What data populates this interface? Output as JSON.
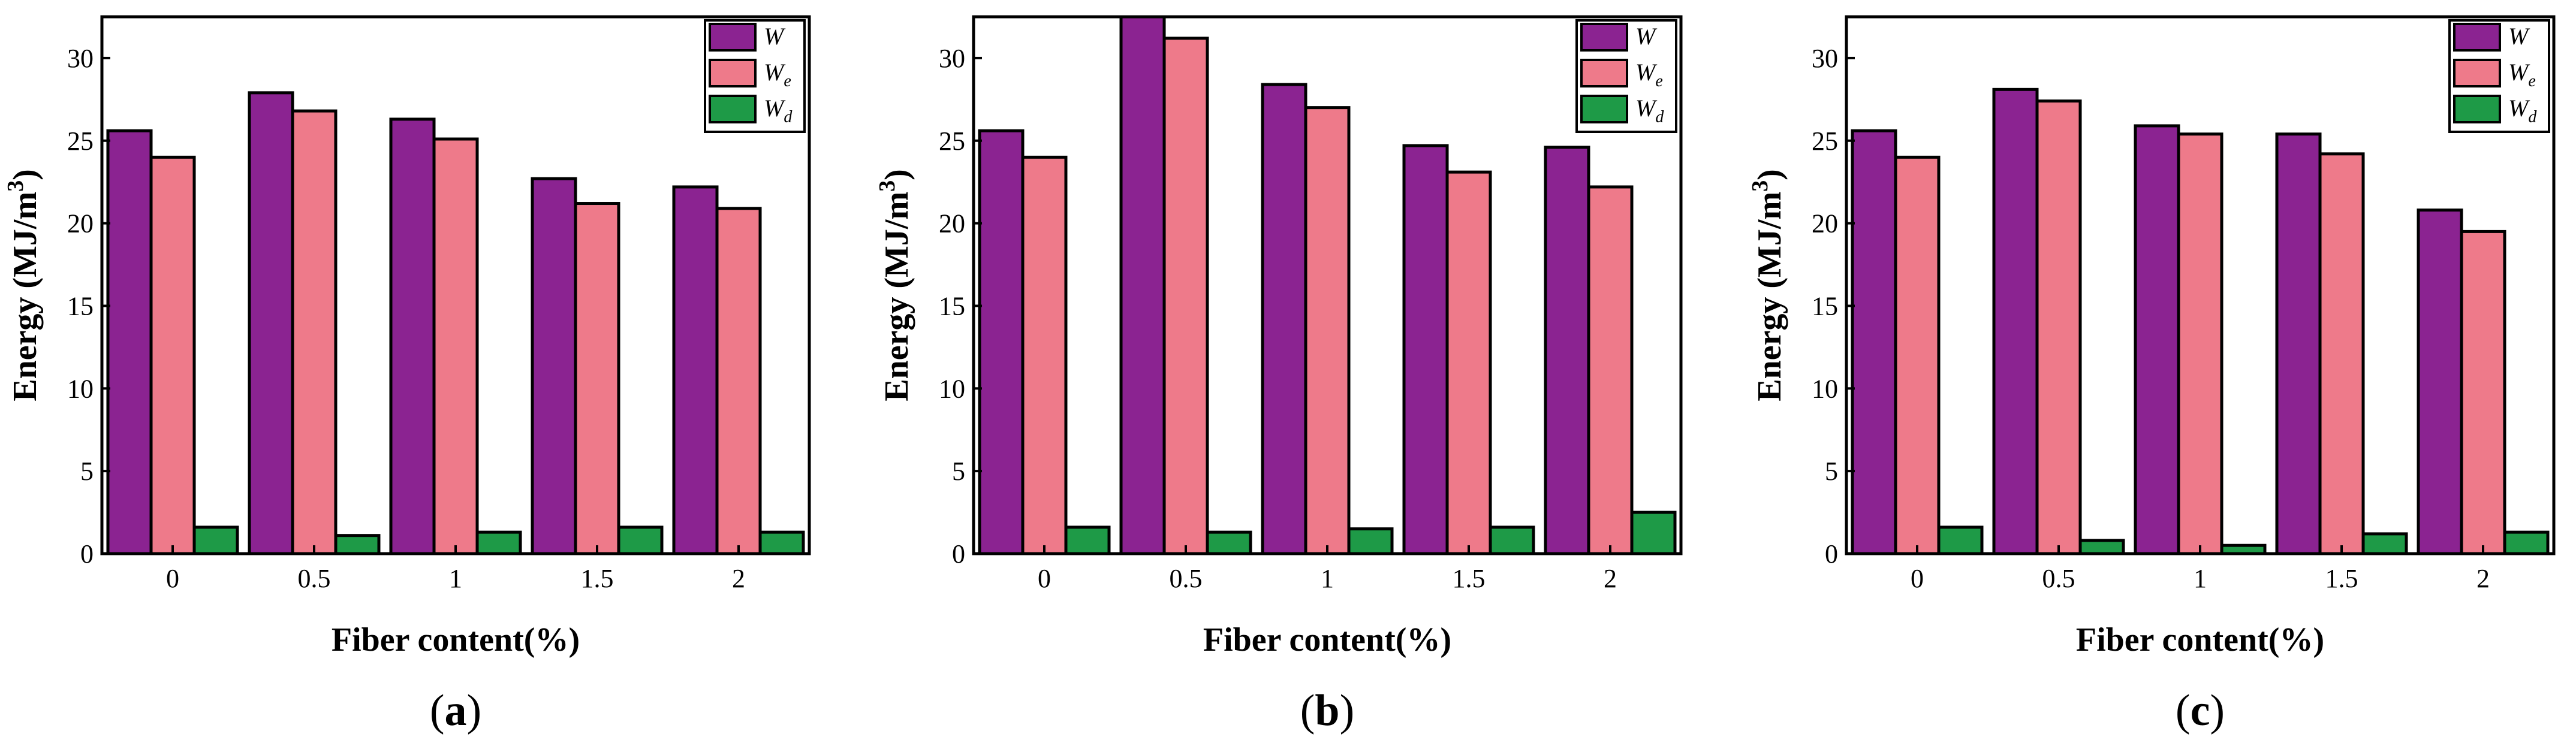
{
  "figure": {
    "panel_labels": [
      "a",
      "b",
      "c"
    ],
    "colors": {
      "W": "#8B2391",
      "We": "#EE7A8A",
      "Wd": "#1E9A47",
      "frame": "#000000"
    }
  },
  "chart_data": [
    {
      "type": "bar",
      "panel": "a",
      "xlabel": "Fiber content(%)",
      "ylabel_main": "Energy (MJ/m",
      "ylabel_sup": "3",
      "ylabel_close": ")",
      "categories": [
        "0",
        "0.5",
        "1",
        "1.5",
        "2"
      ],
      "ylim": [
        0,
        32.5
      ],
      "yticks": [
        "0",
        "5",
        "10",
        "15",
        "20",
        "25",
        "30"
      ],
      "legend_position": "top-right",
      "series": [
        {
          "name": "W",
          "sub": "",
          "color": "#8B2391",
          "values": [
            25.6,
            27.9,
            26.3,
            22.7,
            22.2
          ]
        },
        {
          "name": "W",
          "sub": "e",
          "color": "#EE7A8A",
          "values": [
            24.0,
            26.8,
            25.1,
            21.2,
            20.9
          ]
        },
        {
          "name": "W",
          "sub": "d",
          "color": "#1E9A47",
          "values": [
            1.6,
            1.1,
            1.3,
            1.6,
            1.3
          ]
        }
      ]
    },
    {
      "type": "bar",
      "panel": "b",
      "xlabel": "Fiber content(%)",
      "ylabel_main": "Energy (MJ/m",
      "ylabel_sup": "3",
      "ylabel_close": ")",
      "categories": [
        "0",
        "0.5",
        "1",
        "1.5",
        "2"
      ],
      "ylim": [
        0,
        32.5
      ],
      "yticks": [
        "0",
        "5",
        "10",
        "15",
        "20",
        "25",
        "30"
      ],
      "legend_position": "top-right",
      "series": [
        {
          "name": "W",
          "sub": "",
          "color": "#8B2391",
          "values": [
            25.6,
            32.9,
            28.4,
            24.7,
            24.6
          ]
        },
        {
          "name": "W",
          "sub": "e",
          "color": "#EE7A8A",
          "values": [
            24.0,
            31.2,
            27.0,
            23.1,
            22.2
          ]
        },
        {
          "name": "W",
          "sub": "d",
          "color": "#1E9A47",
          "values": [
            1.6,
            1.3,
            1.5,
            1.6,
            2.5
          ]
        }
      ]
    },
    {
      "type": "bar",
      "panel": "c",
      "xlabel": "Fiber content(%)",
      "ylabel_main": "Energy (MJ/m",
      "ylabel_sup": "3",
      "ylabel_close": ")",
      "categories": [
        "0",
        "0.5",
        "1",
        "1.5",
        "2"
      ],
      "ylim": [
        0,
        32.5
      ],
      "yticks": [
        "0",
        "5",
        "10",
        "15",
        "20",
        "25",
        "30"
      ],
      "legend_position": "top-right",
      "series": [
        {
          "name": "W",
          "sub": "",
          "color": "#8B2391",
          "values": [
            25.6,
            28.1,
            25.9,
            25.4,
            20.8
          ]
        },
        {
          "name": "W",
          "sub": "e",
          "color": "#EE7A8A",
          "values": [
            24.0,
            27.4,
            25.4,
            24.2,
            19.5
          ]
        },
        {
          "name": "W",
          "sub": "d",
          "color": "#1E9A47",
          "values": [
            1.6,
            0.8,
            0.5,
            1.2,
            1.3
          ]
        }
      ]
    }
  ]
}
